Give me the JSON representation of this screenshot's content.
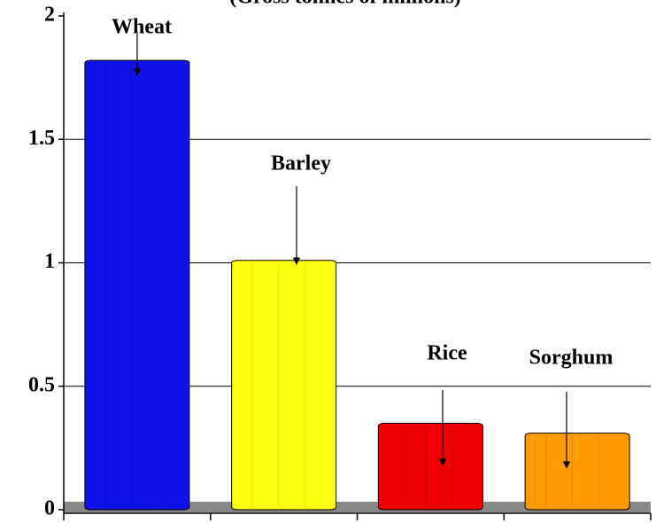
{
  "chart_data": {
    "type": "bar",
    "subtitle": "(Gross tonnes of millions)",
    "categories": [
      "Wheat",
      "Barley",
      "Rice",
      "Sorghum"
    ],
    "values": [
      1.82,
      1.01,
      0.35,
      0.31
    ],
    "colors": [
      "#1010e8",
      "#ffff10",
      "#ee0000",
      "#ff9a00"
    ],
    "ylim": [
      0,
      2
    ],
    "yticks": [
      0,
      0.5,
      1,
      1.5,
      2
    ],
    "grid": true
  }
}
